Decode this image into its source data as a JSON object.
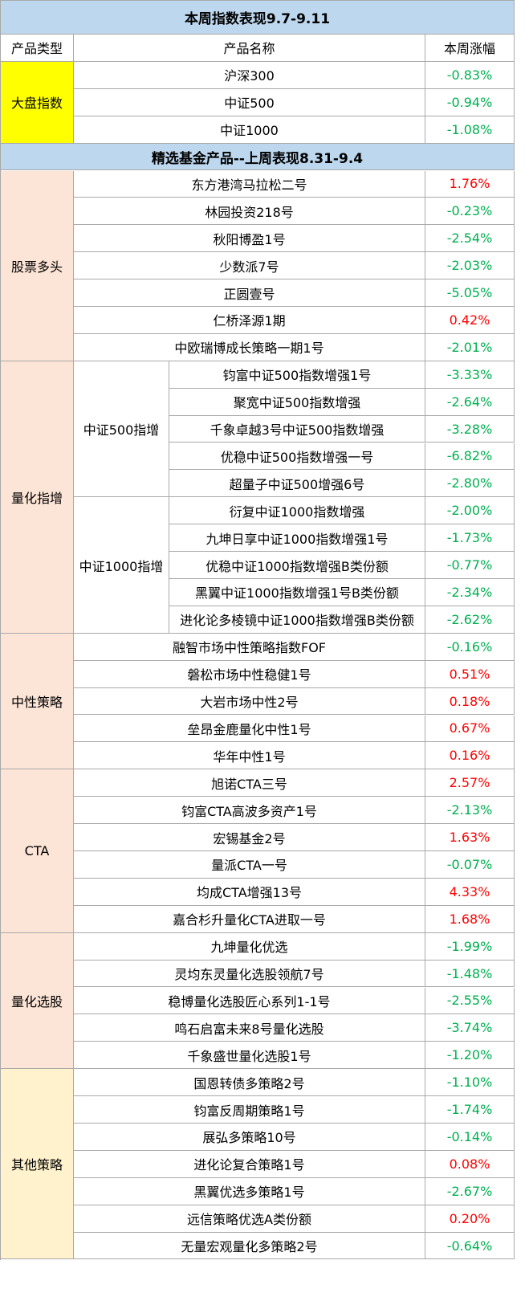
{
  "banners": {
    "index": "本周指数表现9.7-9.11",
    "funds": "精选基金产品--上周表现8.31-9.4"
  },
  "headers": {
    "type": "产品类型",
    "name": "产品名称",
    "change": "本周涨幅"
  },
  "colors": {
    "banner_bg": "#bdd7ee",
    "index_category_bg": "#ffff00",
    "fund_category_bg": "#fce4d6",
    "other_category_bg": "#fff2cc",
    "positive": "#ff0000",
    "negative": "#00b050",
    "grid": "#a9a9a9"
  },
  "index_section": {
    "category": "大盘指数",
    "rows": [
      {
        "name": "沪深300",
        "change": "-0.83%"
      },
      {
        "name": "中证500",
        "change": "-0.94%"
      },
      {
        "name": "中证1000",
        "change": "-1.08%"
      }
    ]
  },
  "fund_sections": [
    {
      "category": "股票多头",
      "rows": [
        {
          "name": "东方港湾马拉松二号",
          "change": "1.76%"
        },
        {
          "name": "林园投资218号",
          "change": "-0.23%"
        },
        {
          "name": "秋阳博盈1号",
          "change": "-2.54%"
        },
        {
          "name": "少数派7号",
          "change": "-2.03%"
        },
        {
          "name": "正圆壹号",
          "change": "-5.05%"
        },
        {
          "name": "仁桥泽源1期",
          "change": "0.42%"
        },
        {
          "name": "中欧瑞博成长策略一期1号",
          "change": "-2.01%"
        }
      ]
    },
    {
      "category": "量化指增",
      "subgroups": [
        {
          "label": "中证500指增",
          "rows": [
            {
              "name": "钧富中证500指数增强1号",
              "change": "-3.33%"
            },
            {
              "name": "聚宽中证500指数增强",
              "change": "-2.64%"
            },
            {
              "name": "千象卓越3号中证500指数增强",
              "change": "-3.28%"
            },
            {
              "name": "优稳中证500指数增强一号",
              "change": "-6.82%"
            },
            {
              "name": "超量子中证500增强6号",
              "change": "-2.80%"
            }
          ]
        },
        {
          "label": "中证1000指增",
          "rows": [
            {
              "name": "衍复中证1000指数增强",
              "change": "-2.00%"
            },
            {
              "name": "九坤日享中证1000指数增强1号",
              "change": "-1.73%"
            },
            {
              "name": "优稳中证1000指数增强B类份额",
              "change": "-0.77%"
            },
            {
              "name": "黑翼中证1000指数增强1号B类份额",
              "change": "-2.34%"
            },
            {
              "name": "进化论多棱镜中证1000指数增强B类份额",
              "change": "-2.62%"
            }
          ]
        }
      ]
    },
    {
      "category": "中性策略",
      "rows": [
        {
          "name": "融智市场中性策略指数FOF",
          "change": "-0.16%"
        },
        {
          "name": "磐松市场中性稳健1号",
          "change": "0.51%"
        },
        {
          "name": "大岩市场中性2号",
          "change": "0.18%"
        },
        {
          "name": "垒昂金鹿量化中性1号",
          "change": "0.67%"
        },
        {
          "name": "华年中性1号",
          "change": "0.16%"
        }
      ]
    },
    {
      "category": "CTA",
      "rows": [
        {
          "name": "旭诺CTA三号",
          "change": "2.57%"
        },
        {
          "name": "钧富CTA高波多资产1号",
          "change": "-2.13%"
        },
        {
          "name": "宏锡基金2号",
          "change": "1.63%"
        },
        {
          "name": "量派CTA一号",
          "change": "-0.07%"
        },
        {
          "name": "均成CTA增强13号",
          "change": "4.33%"
        },
        {
          "name": "嘉合杉升量化CTA进取一号",
          "change": "1.68%"
        }
      ]
    },
    {
      "category": "量化选股",
      "rows": [
        {
          "name": "九坤量化优选",
          "change": "-1.99%"
        },
        {
          "name": "灵均东灵量化选股领航7号",
          "change": "-1.48%"
        },
        {
          "name": "稳博量化选股匠心系列1-1号",
          "change": "-2.55%"
        },
        {
          "name": "鸣石启富未来8号量化选股",
          "change": "-3.74%"
        },
        {
          "name": "千象盛世量化选股1号",
          "change": "-1.20%"
        }
      ]
    },
    {
      "category": "其他策略",
      "rows": [
        {
          "name": "国恩转债多策略2号",
          "change": "-1.10%"
        },
        {
          "name": "钧富反周期策略1号",
          "change": "-1.74%"
        },
        {
          "name": "展弘多策略10号",
          "change": "-0.14%"
        },
        {
          "name": "进化论复合策略1号",
          "change": "0.08%"
        },
        {
          "name": "黑翼优选多策略1号",
          "change": "-2.67%"
        },
        {
          "name": "远信策略优选A类份额",
          "change": "0.20%"
        },
        {
          "name": "无量宏观量化多策略2号",
          "change": "-0.64%"
        }
      ]
    }
  ]
}
